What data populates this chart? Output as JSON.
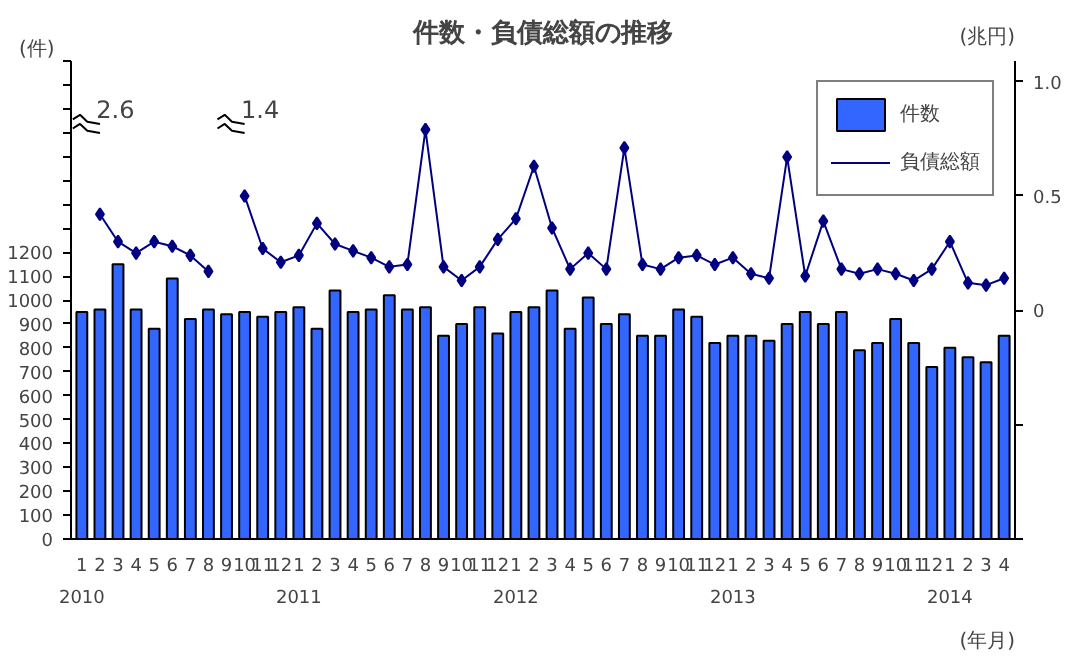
{
  "chart_data": {
    "type": "bar",
    "title": "件数・負債総額の推移",
    "ylabel": "(件)",
    "y2label": "(兆円)",
    "xlabel": "(年月)",
    "categories": [
      "1\n2010",
      "2",
      "3",
      "4",
      "5",
      "6",
      "7",
      "8",
      "9",
      "10",
      "11",
      "12",
      "1\n2011",
      "2",
      "3",
      "4",
      "5",
      "6",
      "7",
      "8",
      "9",
      "10",
      "11",
      "12",
      "1\n2012",
      "2",
      "3",
      "4",
      "5",
      "6",
      "7",
      "8",
      "9",
      "10",
      "11",
      "12",
      "1\n2013",
      "2",
      "3",
      "4",
      "5",
      "6",
      "7",
      "8",
      "9",
      "10",
      "11",
      "12",
      "1\n2014",
      "2",
      "3",
      "4"
    ],
    "series": [
      {
        "name": "件数",
        "color": "#3366ff",
        "values": [
          950,
          960,
          1150,
          960,
          880,
          1090,
          920,
          960,
          940,
          950,
          930,
          950,
          970,
          880,
          1040,
          950,
          960,
          1020,
          960,
          970,
          850,
          900,
          970,
          860,
          950,
          970,
          1040,
          880,
          1010,
          900,
          940,
          850,
          850,
          960,
          930,
          820,
          850,
          850,
          830,
          900,
          950,
          900,
          950,
          790,
          820,
          920,
          820,
          720,
          800,
          760,
          740,
          850
        ]
      },
      {
        "name": "負債総額",
        "type": "line",
        "axis": "y2",
        "color": "#000080",
        "marker": "diamond",
        "values": [
          null,
          0.42,
          0.3,
          0.25,
          0.3,
          0.28,
          0.24,
          0.17,
          null,
          0.5,
          0.27,
          0.21,
          0.24,
          0.38,
          0.29,
          0.26,
          0.23,
          0.19,
          0.2,
          0.79,
          0.19,
          0.13,
          0.19,
          0.31,
          0.4,
          0.63,
          0.36,
          0.18,
          0.25,
          0.18,
          0.71,
          0.2,
          0.18,
          0.23,
          0.24,
          0.2,
          0.23,
          0.16,
          0.14,
          0.67,
          0.15,
          0.39,
          0.18,
          0.16,
          0.18,
          0.16,
          0.13,
          0.18,
          0.3,
          0.12,
          0.11,
          0.14
        ]
      }
    ],
    "ylim": [
      0,
      2000
    ],
    "yticks": [
      0,
      100,
      200,
      300,
      400,
      500,
      600,
      700,
      800,
      900,
      1000,
      1100,
      1200,
      {
        "value": 1300,
        "label": null
      },
      {
        "value": 1400,
        "label": null
      },
      {
        "value": 1500,
        "label": null
      },
      {
        "value": 1600,
        "label": null
      },
      {
        "value": 1700,
        "label": null
      },
      {
        "value": 1800,
        "label": null
      },
      {
        "value": 1900,
        "label": null
      },
      {
        "value": 2000,
        "label": null
      }
    ],
    "y2lim": [
      -1,
      1.09
    ],
    "y2ticks": [
      {
        "value": -1,
        "label": null
      },
      {
        "value": -0.5,
        "label": null
      },
      0,
      {
        "value": 0.5,
        "label": "0.5"
      },
      {
        "value": 1.0,
        "label": "1.0"
      }
    ],
    "annotations": [
      "2.6",
      "1.4"
    ],
    "legend": "top right",
    "grid": false
  }
}
